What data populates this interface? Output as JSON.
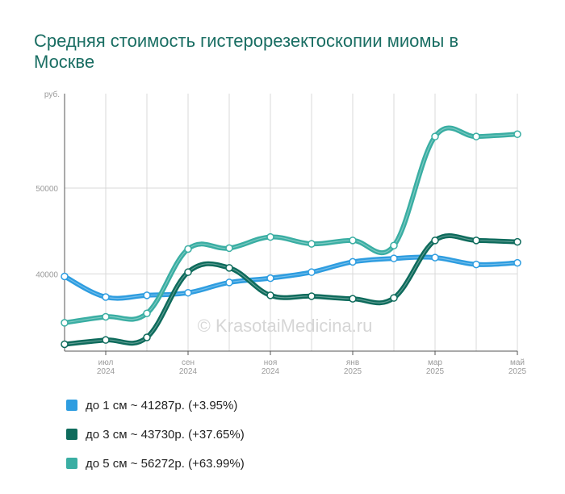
{
  "title": "Средняя стоимость гистерорезектоскопии миомы в Москве",
  "watermark": "© KrasotaiMedicina.ru",
  "colors": {
    "title": "#1a6e63",
    "grid": "#d9d9d9",
    "axis": "#555555"
  },
  "chart_data": {
    "type": "line",
    "ylabel": "руб.",
    "yticks": [
      40000,
      50000
    ],
    "ylim": [
      31000,
      61000
    ],
    "x_tick_labels": [
      {
        "month": "июл",
        "year": "2024",
        "index": 1
      },
      {
        "month": "сен",
        "year": "2024",
        "index": 3
      },
      {
        "month": "ноя",
        "year": "2024",
        "index": 5
      },
      {
        "month": "янв",
        "year": "2025",
        "index": 7
      },
      {
        "month": "мар",
        "year": "2025",
        "index": 9
      },
      {
        "month": "май",
        "year": "2025",
        "index": 11
      }
    ],
    "x": [
      "2024-06",
      "2024-07",
      "2024-08",
      "2024-09",
      "2024-10",
      "2024-11",
      "2024-12",
      "2025-01",
      "2025-02",
      "2025-03",
      "2025-04",
      "2025-05"
    ],
    "grid": true,
    "series": [
      {
        "name": "до 1 см",
        "color": "#2e9de0",
        "values": [
          39700,
          37300,
          37500,
          37800,
          39000,
          39500,
          40200,
          41400,
          41800,
          41900,
          41100,
          41287
        ]
      },
      {
        "name": "до 3 см",
        "color": "#0e6b5c",
        "values": [
          31800,
          32300,
          32600,
          40200,
          40700,
          37500,
          37400,
          37100,
          37200,
          43900,
          43900,
          43730
        ]
      },
      {
        "name": "до 5 см",
        "color": "#3aaea3",
        "values": [
          34300,
          35000,
          35400,
          42900,
          43000,
          44300,
          43500,
          43900,
          43300,
          56000,
          56000,
          56272
        ]
      }
    ]
  },
  "legend": [
    {
      "label": "до 1 см ~ 41287р. (+3.95%)",
      "color": "#2e9de0"
    },
    {
      "label": "до 3 см ~ 43730р. (+37.65%)",
      "color": "#0e6b5c"
    },
    {
      "label": "до 5 см ~ 56272р. (+63.99%)",
      "color": "#3aaea3"
    }
  ]
}
